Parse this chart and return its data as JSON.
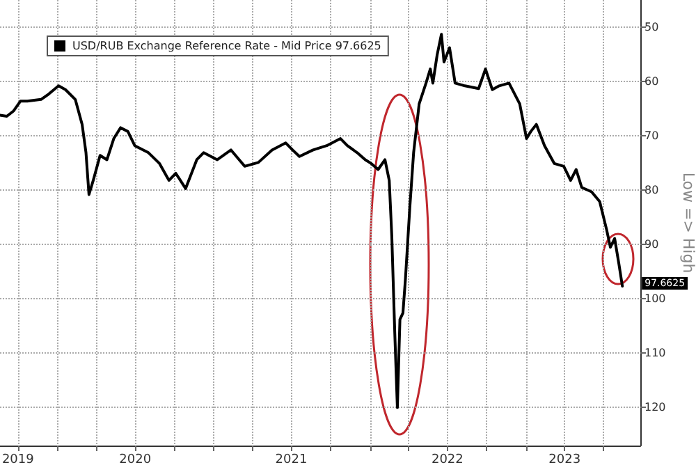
{
  "chart_data": {
    "type": "line",
    "ylabel": "Low => High",
    "legend": "top left",
    "grid": true,
    "marker": "none",
    "line_style": "solid",
    "ylim": [
      127,
      45
    ],
    "yticks": [
      50,
      60,
      70,
      80,
      90,
      100,
      110,
      120
    ],
    "xlim": [
      "2019-08-20",
      "2023-09-25"
    ],
    "xticks": [
      {
        "value": "2019-10-01",
        "label": "2019"
      },
      {
        "value": "2020-01-01",
        "label": null
      },
      {
        "value": "2020-04-01",
        "label": null
      },
      {
        "value": "2020-07-01",
        "label": "2020"
      },
      {
        "value": "2020-10-01",
        "label": null
      },
      {
        "value": "2021-01-01",
        "label": null
      },
      {
        "value": "2021-04-01",
        "label": null
      },
      {
        "value": "2021-07-01",
        "label": "2021"
      },
      {
        "value": "2021-10-01",
        "label": null
      },
      {
        "value": "2022-01-01",
        "label": null
      },
      {
        "value": "2022-04-01",
        "label": null
      },
      {
        "value": "2022-07-01",
        "label": "2022"
      },
      {
        "value": "2022-10-01",
        "label": null
      },
      {
        "value": "2023-01-01",
        "label": null
      },
      {
        "value": "2023-04-01",
        "label": "2023"
      },
      {
        "value": "2023-07-01",
        "label": null
      }
    ],
    "annotations": [
      {
        "text": "97.6625",
        "x": "2023-08-14",
        "y": 97.6625
      }
    ],
    "series": [
      {
        "name": "USD/RUB Exchange Reference Rate - Mid Price 97.6625",
        "color": "#000000",
        "x": [
          "2019-08-20",
          "2019-09-05",
          "2019-09-21",
          "2019-10-07",
          "2019-10-23",
          "2019-11-24",
          "2019-12-12",
          "2020-01-04",
          "2020-01-20",
          "2020-02-12",
          "2020-02-28",
          "2020-03-08",
          "2020-03-15",
          "2020-03-25",
          "2020-04-10",
          "2020-04-26",
          "2020-05-12",
          "2020-05-28",
          "2020-06-14",
          "2020-06-30",
          "2020-08-01",
          "2020-08-27",
          "2020-09-18",
          "2020-10-04",
          "2020-10-27",
          "2020-11-22",
          "2020-12-08",
          "2021-01-09",
          "2021-02-10",
          "2021-03-14",
          "2021-04-15",
          "2021-05-17",
          "2021-06-18",
          "2021-07-04",
          "2021-07-20",
          "2021-08-21",
          "2021-09-22",
          "2021-10-24",
          "2021-11-09",
          "2021-12-02",
          "2021-12-21",
          "2022-01-04",
          "2022-01-20",
          "2022-02-05",
          "2022-02-15",
          "2022-02-21",
          "2022-02-28",
          "2022-03-06",
          "2022-03-12",
          "2022-03-19",
          "2022-03-25",
          "2022-04-04",
          "2022-04-13",
          "2022-04-26",
          "2022-05-12",
          "2022-05-22",
          "2022-05-28",
          "2022-06-07",
          "2022-06-17",
          "2022-06-23",
          "2022-07-06",
          "2022-07-19",
          "2022-08-11",
          "2022-09-12",
          "2022-09-28",
          "2022-10-14",
          "2022-10-30",
          "2022-11-22",
          "2022-12-17",
          "2023-01-02",
          "2023-01-12",
          "2023-01-25",
          "2023-02-13",
          "2023-03-08",
          "2023-03-30",
          "2023-04-15",
          "2023-04-28",
          "2023-05-11",
          "2023-06-03",
          "2023-06-22",
          "2023-07-08",
          "2023-07-17",
          "2023-07-27",
          "2023-08-06",
          "2023-08-14"
        ],
        "values": [
          66.2,
          66.4,
          65.4,
          63.6,
          63.6,
          63.3,
          62.3,
          60.8,
          61.5,
          63.3,
          67.9,
          73.1,
          80.8,
          78.2,
          73.6,
          74.4,
          70.5,
          68.5,
          69.2,
          71.8,
          73.1,
          75.1,
          78.2,
          76.9,
          79.7,
          74.4,
          73.1,
          74.4,
          72.6,
          75.6,
          74.9,
          72.6,
          71.3,
          72.6,
          73.8,
          72.6,
          71.8,
          70.5,
          71.8,
          73.1,
          74.4,
          75.1,
          76.2,
          74.4,
          78.2,
          88.5,
          106.4,
          120,
          103.8,
          102.6,
          96.2,
          83.3,
          73.1,
          64.1,
          60.3,
          57.7,
          60.3,
          55.1,
          51.3,
          56.4,
          53.8,
          60.3,
          60.8,
          61.3,
          57.7,
          61.5,
          60.8,
          60.3,
          64.1,
          70.5,
          69.2,
          67.9,
          71.8,
          75.1,
          75.6,
          78.2,
          76.2,
          79.5,
          80.3,
          82.1,
          87.2,
          90.5,
          88.9,
          93.6,
          97.6625
        ]
      }
    ]
  }
}
